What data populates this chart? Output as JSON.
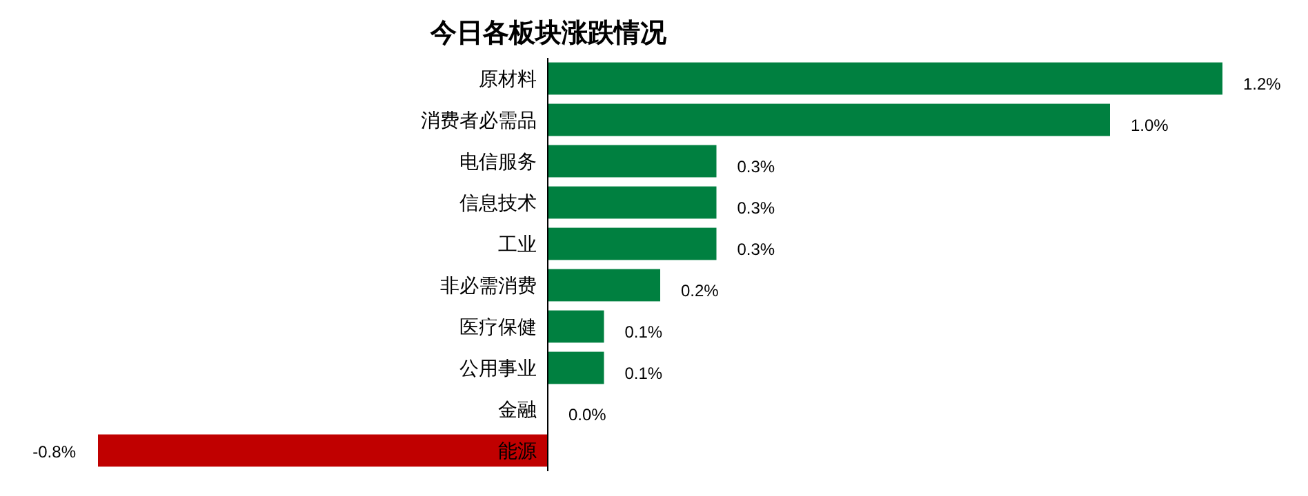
{
  "chart_data": {
    "type": "bar",
    "orientation": "horizontal",
    "title": "今日各板块涨跌情况",
    "categories": [
      "原材料",
      "消费者必需品",
      "电信服务",
      "信息技术",
      "工业",
      "非必需消费",
      "医疗保健",
      "公用事业",
      "金融",
      "能源"
    ],
    "values": [
      1.2,
      1.0,
      0.3,
      0.3,
      0.3,
      0.2,
      0.1,
      0.1,
      0.0,
      -0.8
    ],
    "value_labels": [
      "1.2%",
      "1.0%",
      "0.3%",
      "0.3%",
      "0.3%",
      "0.2%",
      "0.1%",
      "0.1%",
      "0.0%",
      "-0.8%"
    ],
    "colors": [
      "#008040",
      "#008040",
      "#008040",
      "#008040",
      "#008040",
      "#008040",
      "#008040",
      "#008040",
      "#008040",
      "#c00000"
    ]
  }
}
